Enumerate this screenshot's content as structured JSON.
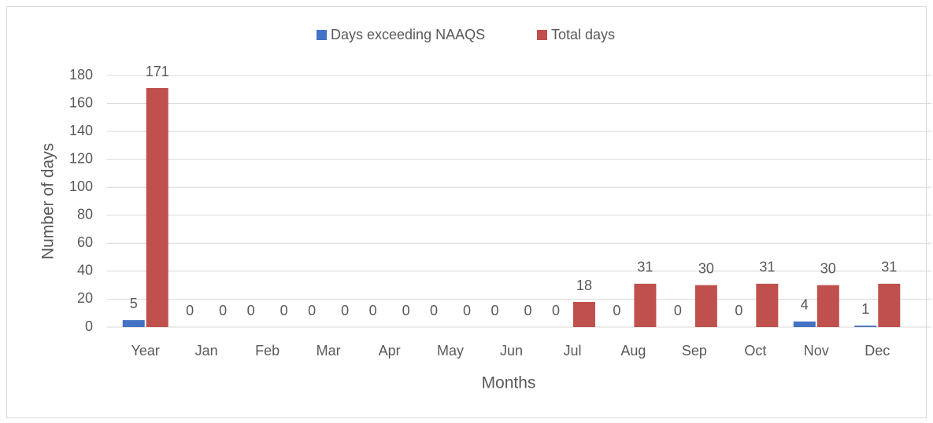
{
  "chart_data": {
    "type": "bar",
    "categories": [
      "Year",
      "Jan",
      "Feb",
      "Mar",
      "Apr",
      "May",
      "Jun",
      "Jul",
      "Aug",
      "Sep",
      "Oct",
      "Nov",
      "Dec"
    ],
    "series": [
      {
        "name": "Days exceeding NAAQS",
        "color": "#4472c4",
        "values": [
          5,
          0,
          0,
          0,
          0,
          0,
          0,
          0,
          0,
          0,
          0,
          4,
          1
        ]
      },
      {
        "name": "Total days",
        "color": "#c0504d",
        "values": [
          171,
          0,
          0,
          0,
          0,
          0,
          0,
          18,
          31,
          30,
          31,
          30,
          31
        ]
      }
    ],
    "x_label": "Months",
    "y_label": "Number of days",
    "ylim": [
      0,
      180
    ],
    "yticks": [
      0,
      20,
      40,
      60,
      80,
      100,
      120,
      140,
      160,
      180
    ],
    "grid": true,
    "legend": "top"
  }
}
